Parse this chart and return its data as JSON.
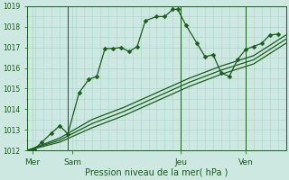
{
  "bg_color": "#cce8e0",
  "grid_color": "#aad4cc",
  "line_color": "#1a5c1a",
  "vline_color": "#1a5c1a",
  "xlabel": "Pression niveau de la mer( hPa )",
  "ylim": [
    1012,
    1019
  ],
  "yticks": [
    1012,
    1013,
    1014,
    1015,
    1016,
    1017,
    1018,
    1019
  ],
  "xlim": [
    0,
    16
  ],
  "day_labels": [
    "Mer",
    "Sam",
    "Jeu",
    "Ven"
  ],
  "day_positions": [
    0.3,
    2.8,
    9.5,
    13.5
  ],
  "vline_positions": [
    2.5,
    9.5,
    13.5
  ],
  "series1_x": [
    0,
    0.4,
    0.9,
    1.5,
    2.0,
    2.5,
    3.2,
    3.8,
    4.3,
    4.8,
    5.3,
    5.8,
    6.3,
    6.8,
    7.3,
    8.0,
    8.5,
    9.0,
    9.3,
    9.8,
    10.5,
    11.0,
    11.5,
    12.0,
    12.5,
    13.0,
    13.5,
    14.0,
    14.5,
    15.0,
    15.5
  ],
  "series1_y": [
    1012.0,
    1012.05,
    1012.4,
    1012.85,
    1013.2,
    1012.8,
    1014.8,
    1015.45,
    1015.6,
    1016.95,
    1016.95,
    1017.0,
    1016.8,
    1017.05,
    1018.3,
    1018.5,
    1018.5,
    1018.85,
    1018.85,
    1018.1,
    1017.2,
    1016.55,
    1016.65,
    1015.75,
    1015.6,
    1016.4,
    1016.9,
    1017.05,
    1017.2,
    1017.6,
    1017.65
  ],
  "series2_x": [
    0,
    2,
    4,
    6,
    8,
    10,
    12,
    14,
    16
  ],
  "series2_y": [
    1012.0,
    1012.6,
    1013.5,
    1014.1,
    1014.8,
    1015.5,
    1016.1,
    1016.6,
    1017.6
  ],
  "series3_x": [
    0,
    2,
    4,
    6,
    8,
    10,
    12,
    14,
    16
  ],
  "series3_y": [
    1012.0,
    1012.5,
    1013.3,
    1013.9,
    1014.6,
    1015.3,
    1015.9,
    1016.4,
    1017.4
  ],
  "series4_x": [
    0,
    2,
    4,
    6,
    8,
    10,
    12,
    14,
    16
  ],
  "series4_y": [
    1012.0,
    1012.4,
    1013.1,
    1013.7,
    1014.4,
    1015.1,
    1015.7,
    1016.2,
    1017.2
  ],
  "markersize": 2.5,
  "lw_main": 0.9,
  "lw_parallel": 0.9
}
